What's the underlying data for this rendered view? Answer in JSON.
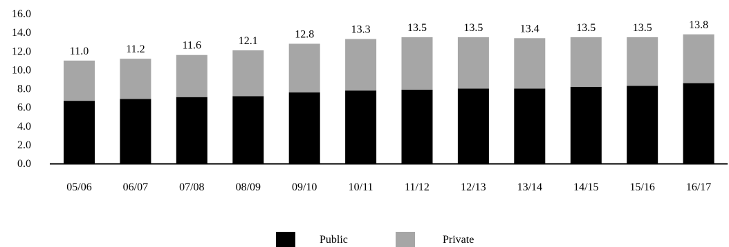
{
  "chart_data": {
    "type": "bar",
    "stacked": true,
    "categories": [
      "05/06",
      "06/07",
      "07/08",
      "08/09",
      "09/10",
      "10/11",
      "11/12",
      "12/13",
      "13/14",
      "14/15",
      "15/16",
      "16/17"
    ],
    "series": [
      {
        "name": "Public",
        "color": "#000000",
        "values": [
          6.7,
          6.9,
          7.1,
          7.2,
          7.6,
          7.8,
          7.9,
          8.0,
          8.0,
          8.2,
          8.3,
          8.6
        ]
      },
      {
        "name": "Private",
        "color": "#a6a6a6",
        "values": [
          4.3,
          4.3,
          4.5,
          4.9,
          5.2,
          5.5,
          5.6,
          5.5,
          5.4,
          5.3,
          5.2,
          5.2
        ]
      }
    ],
    "totals": [
      "11.0",
      "11.2",
      "11.6",
      "12.1",
      "12.8",
      "13.3",
      "13.5",
      "13.5",
      "13.4",
      "13.5",
      "13.5",
      "13.8"
    ],
    "y_ticks": [
      "0.0",
      "2.0",
      "4.0",
      "6.0",
      "8.0",
      "10.0",
      "12.0",
      "14.0",
      "16.0"
    ],
    "ylim": [
      0,
      16
    ],
    "grid": false,
    "legend_position": "bottom-center",
    "title": "",
    "xlabel": "",
    "ylabel": ""
  }
}
